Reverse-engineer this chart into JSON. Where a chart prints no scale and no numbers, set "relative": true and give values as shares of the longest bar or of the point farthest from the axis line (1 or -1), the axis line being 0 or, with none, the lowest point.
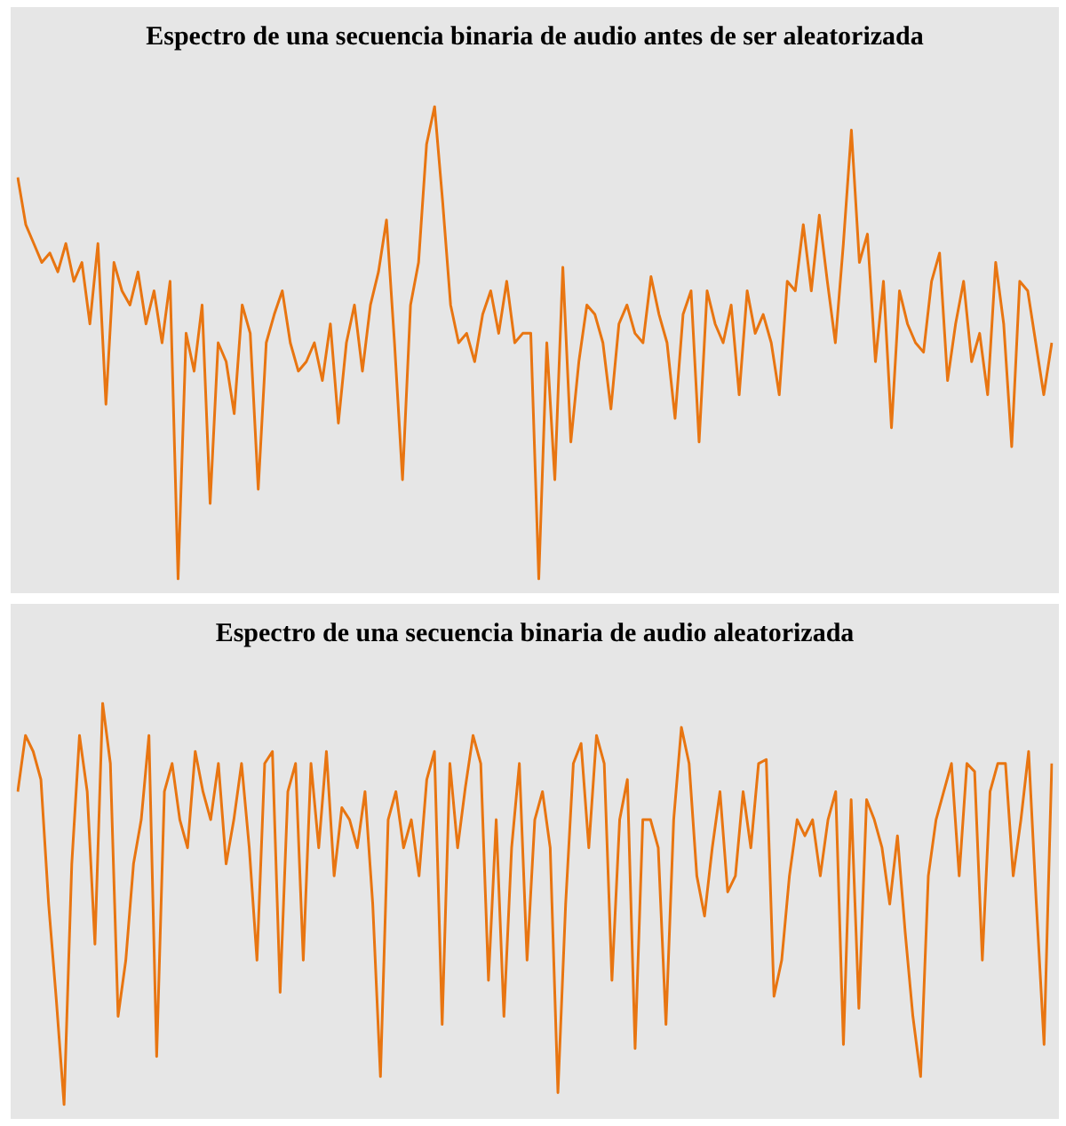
{
  "chart_data": [
    {
      "type": "line",
      "title": "Espectro de una secuencia binaria de audio antes de ser aleatorizada",
      "relative": true,
      "categories": [
        null,
        null,
        null,
        null,
        null,
        null,
        null,
        null,
        null,
        null,
        null,
        null,
        null,
        null,
        null,
        null,
        null,
        null,
        null,
        null,
        null,
        null,
        null,
        null,
        null,
        null,
        null,
        null,
        null,
        null,
        null,
        null,
        null,
        null,
        null,
        null,
        null,
        null,
        null,
        null,
        null,
        null,
        null,
        null,
        null,
        null,
        null,
        null,
        null,
        null,
        null,
        null,
        null,
        null,
        null,
        null,
        null,
        null,
        null,
        null,
        null,
        null,
        null,
        null,
        null,
        null,
        null,
        null,
        null,
        null,
        null,
        null,
        null,
        null,
        null,
        null,
        null,
        null,
        null,
        null,
        null,
        null,
        null,
        null,
        null,
        null,
        null,
        null,
        null,
        null,
        null,
        null,
        null,
        null,
        null,
        null,
        null,
        null,
        null,
        null,
        null,
        null,
        null,
        null,
        null,
        null,
        null,
        null,
        null,
        null,
        null,
        null,
        null,
        null,
        null,
        null,
        null,
        null,
        null,
        null,
        null,
        null,
        null,
        null,
        null,
        null,
        null,
        null,
        null,
        null
      ],
      "series": [
        {
          "color": "#e87511",
          "values": [
            0.85,
            0.75,
            0.71,
            0.67,
            0.69,
            0.65,
            0.71,
            0.63,
            0.67,
            0.54,
            0.71,
            0.37,
            0.67,
            0.61,
            0.58,
            0.65,
            0.54,
            0.61,
            0.5,
            0.63,
            0,
            0.52,
            0.44,
            0.58,
            0.16,
            0.5,
            0.46,
            0.35,
            0.58,
            0.52,
            0.19,
            0.5,
            0.56,
            0.61,
            0.5,
            0.44,
            0.46,
            0.5,
            0.42,
            0.54,
            0.33,
            0.5,
            0.58,
            0.44,
            0.58,
            0.65,
            0.76,
            0.5,
            0.21,
            0.58,
            0.67,
            0.92,
            1,
            0.8,
            0.58,
            0.5,
            0.52,
            0.46,
            0.56,
            0.61,
            0.52,
            0.63,
            0.5,
            0.52,
            0.52,
            0,
            0.5,
            0.21,
            0.66,
            0.29,
            0.46,
            0.58,
            0.56,
            0.5,
            0.36,
            0.54,
            0.58,
            0.52,
            0.5,
            0.64,
            0.56,
            0.5,
            0.34,
            0.56,
            0.61,
            0.29,
            0.61,
            0.54,
            0.5,
            0.58,
            0.39,
            0.61,
            0.52,
            0.56,
            0.5,
            0.39,
            0.63,
            0.61,
            0.75,
            0.61,
            0.77,
            0.63,
            0.5,
            0.71,
            0.95,
            0.67,
            0.73,
            0.46,
            0.63,
            0.32,
            0.61,
            0.54,
            0.5,
            0.48,
            0.63,
            0.69,
            0.42,
            0.54,
            0.63,
            0.46,
            0.52,
            0.39,
            0.67,
            0.54,
            0.28,
            0.63,
            0.61,
            0.5,
            0.39,
            0.5
          ]
        }
      ]
    },
    {
      "type": "line",
      "title": "Espectro de una secuencia binaria de audio aleatorizada",
      "relative": true,
      "categories": [
        null,
        null,
        null,
        null,
        null,
        null,
        null,
        null,
        null,
        null,
        null,
        null,
        null,
        null,
        null,
        null,
        null,
        null,
        null,
        null,
        null,
        null,
        null,
        null,
        null,
        null,
        null,
        null,
        null,
        null,
        null,
        null,
        null,
        null,
        null,
        null,
        null,
        null,
        null,
        null,
        null,
        null,
        null,
        null,
        null,
        null,
        null,
        null,
        null,
        null,
        null,
        null,
        null,
        null,
        null,
        null,
        null,
        null,
        null,
        null,
        null,
        null,
        null,
        null,
        null,
        null,
        null,
        null,
        null,
        null,
        null,
        null,
        null,
        null,
        null,
        null,
        null,
        null,
        null,
        null,
        null,
        null,
        null,
        null,
        null,
        null,
        null,
        null,
        null,
        null,
        null,
        null,
        null,
        null,
        null,
        null,
        null,
        null,
        null,
        null,
        null,
        null,
        null,
        null,
        null,
        null,
        null,
        null,
        null,
        null,
        null,
        null,
        null,
        null,
        null,
        null,
        null,
        null,
        null,
        null,
        null,
        null,
        null,
        null,
        null,
        null,
        null,
        null,
        null,
        null,
        null,
        null,
        null,
        null,
        null
      ],
      "series": [
        {
          "color": "#e87511",
          "values": [
            0.78,
            0.92,
            0.88,
            0.81,
            0.5,
            0.26,
            0,
            0.6,
            0.92,
            0.78,
            0.4,
            1,
            0.85,
            0.22,
            0.36,
            0.6,
            0.71,
            0.92,
            0.12,
            0.78,
            0.85,
            0.71,
            0.64,
            0.88,
            0.78,
            0.71,
            0.85,
            0.6,
            0.71,
            0.85,
            0.64,
            0.36,
            0.85,
            0.88,
            0.28,
            0.78,
            0.85,
            0.36,
            0.85,
            0.64,
            0.88,
            0.57,
            0.74,
            0.71,
            0.64,
            0.78,
            0.5,
            0.07,
            0.71,
            0.78,
            0.64,
            0.71,
            0.57,
            0.81,
            0.88,
            0.2,
            0.85,
            0.64,
            0.79,
            0.92,
            0.85,
            0.31,
            0.71,
            0.22,
            0.64,
            0.85,
            0.36,
            0.71,
            0.78,
            0.64,
            0.03,
            0.5,
            0.85,
            0.9,
            0.64,
            0.92,
            0.85,
            0.31,
            0.71,
            0.81,
            0.14,
            0.71,
            0.71,
            0.64,
            0.2,
            0.71,
            0.94,
            0.85,
            0.57,
            0.47,
            0.64,
            0.78,
            0.53,
            0.57,
            0.78,
            0.64,
            0.85,
            0.86,
            0.27,
            0.36,
            0.57,
            0.71,
            0.67,
            0.71,
            0.57,
            0.71,
            0.78,
            0.15,
            0.76,
            0.24,
            0.76,
            0.71,
            0.64,
            0.5,
            0.67,
            0.43,
            0.22,
            0.07,
            0.57,
            0.71,
            0.78,
            0.85,
            0.57,
            0.85,
            0.83,
            0.36,
            0.78,
            0.85,
            0.85,
            0.57,
            0.71,
            0.88,
            0.5,
            0.15,
            0.85
          ]
        }
      ]
    }
  ]
}
